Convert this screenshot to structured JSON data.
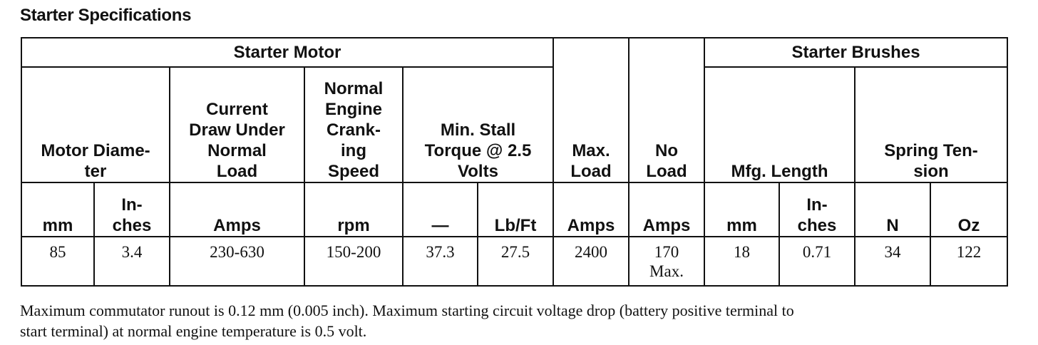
{
  "title": "Starter Specifications",
  "groups": {
    "starter_motor": "Starter Motor",
    "starter_brushes": "Starter Brushes"
  },
  "columns": {
    "motor_diameter": [
      "Motor Diame-",
      "ter"
    ],
    "current_draw": [
      "Current",
      "Draw Under",
      "Normal",
      "Load"
    ],
    "cranking_speed": [
      "Normal",
      "Engine",
      "Crank-",
      "ing",
      "Speed"
    ],
    "stall_torque": [
      "Min. Stall",
      "Torque @ 2.5",
      "Volts"
    ],
    "max_load": [
      "Max.",
      "Load"
    ],
    "no_load": [
      "No",
      "Load"
    ],
    "mfg_length": [
      "Mfg. Length"
    ],
    "spring_tension": [
      "Spring Ten-",
      "sion"
    ]
  },
  "units": {
    "diam_mm": "mm",
    "diam_in": [
      "In-",
      "ches"
    ],
    "current_amps": "Amps",
    "speed_rpm": "rpm",
    "torque_dash": "—",
    "torque_lbft": "Lb/Ft",
    "max_amps": "Amps",
    "noload_amps": "Amps",
    "len_mm": "mm",
    "len_in": [
      "In-",
      "ches"
    ],
    "tension_n": "N",
    "tension_oz": "Oz"
  },
  "values": {
    "diam_mm": "85",
    "diam_in": "3.4",
    "current_amps": "230-630",
    "speed_rpm": "150-200",
    "torque_dash": "37.3",
    "torque_lbft": "27.5",
    "max_amps": "2400",
    "noload_amps": [
      "170",
      "Max."
    ],
    "len_mm": "18",
    "len_in": "0.71",
    "tension_n": "34",
    "tension_oz": "122"
  },
  "note": [
    "Maximum commutator runout is 0.12 mm (0.005 inch). Maximum starting circuit voltage drop (battery positive terminal to",
    "start terminal) at normal engine temperature is 0.5 volt."
  ]
}
